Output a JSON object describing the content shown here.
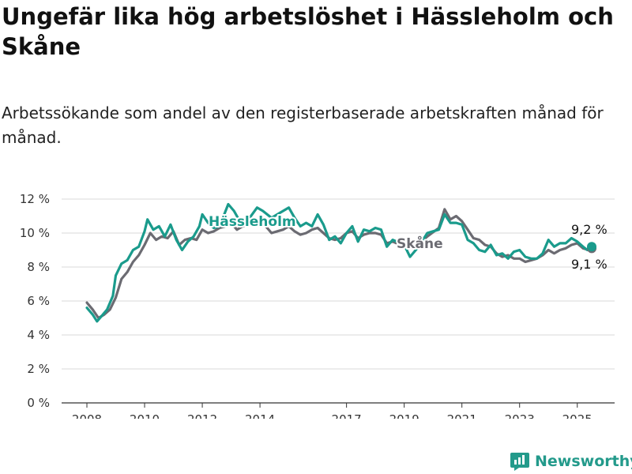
{
  "title": "Ungefär lika hög arbetslöshet i Hässleholm och Skåne",
  "subtitle": "Arbetssökande som andel av den registerbaserade arbetskraften månad för månad.",
  "brand": {
    "name": "Newsworthy",
    "logo_icon": "bar-chart-logo-icon"
  },
  "colors": {
    "hassleholm": "#1a9b8c",
    "skane": "#6b6b72",
    "grid": "#d9d9d9",
    "axis": "#333333"
  },
  "chart_data": {
    "type": "line",
    "y_ticks": [
      "0 %",
      "2 %",
      "4 %",
      "6 %",
      "8 %",
      "10 %",
      "12 %"
    ],
    "y_tick_values": [
      0,
      2,
      4,
      6,
      8,
      10,
      12
    ],
    "x_ticks": [
      "2008",
      "2010",
      "2012",
      "2014",
      "2017",
      "2019",
      "2021",
      "2023",
      "2025"
    ],
    "x_tick_values": [
      2008,
      2010,
      2012,
      2014,
      2017,
      2019,
      2021,
      2023,
      2025
    ],
    "xlim": [
      2008,
      2025.5
    ],
    "ylim": [
      0,
      12
    ],
    "grid": "horizontal",
    "series": [
      {
        "name": "Skåne",
        "label": "Skåne",
        "end_label": "9,1 %",
        "points": [
          [
            2008.0,
            5.9
          ],
          [
            2008.2,
            5.5
          ],
          [
            2008.4,
            5.0
          ],
          [
            2008.6,
            5.2
          ],
          [
            2008.8,
            5.5
          ],
          [
            2009.0,
            6.2
          ],
          [
            2009.2,
            7.3
          ],
          [
            2009.4,
            7.7
          ],
          [
            2009.6,
            8.3
          ],
          [
            2009.8,
            8.7
          ],
          [
            2010.0,
            9.3
          ],
          [
            2010.2,
            10.0
          ],
          [
            2010.4,
            9.6
          ],
          [
            2010.6,
            9.8
          ],
          [
            2010.8,
            9.7
          ],
          [
            2011.0,
            10.1
          ],
          [
            2011.2,
            9.3
          ],
          [
            2011.4,
            9.6
          ],
          [
            2011.6,
            9.7
          ],
          [
            2011.8,
            9.6
          ],
          [
            2012.0,
            10.2
          ],
          [
            2012.2,
            10.0
          ],
          [
            2012.4,
            10.1
          ],
          [
            2012.6,
            10.3
          ],
          [
            2012.8,
            10.4
          ],
          [
            2013.0,
            10.6
          ],
          [
            2013.2,
            10.2
          ],
          [
            2013.4,
            10.4
          ],
          [
            2013.6,
            10.5
          ],
          [
            2013.8,
            10.6
          ],
          [
            2014.0,
            10.8
          ],
          [
            2014.2,
            10.4
          ],
          [
            2014.4,
            10.0
          ],
          [
            2014.6,
            10.1
          ],
          [
            2014.8,
            10.2
          ],
          [
            2015.0,
            10.4
          ],
          [
            2015.2,
            10.1
          ],
          [
            2015.4,
            9.9
          ],
          [
            2015.6,
            10.0
          ],
          [
            2015.8,
            10.2
          ],
          [
            2016.0,
            10.3
          ],
          [
            2016.2,
            10.0
          ],
          [
            2016.4,
            9.7
          ],
          [
            2016.6,
            9.6
          ],
          [
            2016.8,
            9.7
          ],
          [
            2017.0,
            10.0
          ],
          [
            2017.2,
            10.1
          ],
          [
            2017.4,
            9.7
          ],
          [
            2017.6,
            9.9
          ],
          [
            2017.8,
            10.0
          ],
          [
            2018.0,
            10.0
          ],
          [
            2018.2,
            9.9
          ],
          [
            2018.4,
            9.4
          ],
          [
            2018.6,
            9.5
          ],
          [
            2019.0,
            9.2
          ],
          [
            2019.4,
            9.2
          ],
          [
            2019.8,
            9.8
          ],
          [
            2020.2,
            10.3
          ],
          [
            2020.4,
            11.4
          ],
          [
            2020.6,
            10.8
          ],
          [
            2020.8,
            11.0
          ],
          [
            2021.0,
            10.7
          ],
          [
            2021.2,
            10.2
          ],
          [
            2021.4,
            9.7
          ],
          [
            2021.6,
            9.6
          ],
          [
            2021.8,
            9.3
          ],
          [
            2022.0,
            9.2
          ],
          [
            2022.2,
            8.8
          ],
          [
            2022.4,
            8.6
          ],
          [
            2022.6,
            8.7
          ],
          [
            2022.8,
            8.5
          ],
          [
            2023.0,
            8.5
          ],
          [
            2023.2,
            8.3
          ],
          [
            2023.4,
            8.4
          ],
          [
            2023.6,
            8.5
          ],
          [
            2023.8,
            8.7
          ],
          [
            2024.0,
            9.0
          ],
          [
            2024.2,
            8.8
          ],
          [
            2024.4,
            9.0
          ],
          [
            2024.6,
            9.1
          ],
          [
            2024.8,
            9.3
          ],
          [
            2025.0,
            9.4
          ],
          [
            2025.2,
            9.1
          ],
          [
            2025.4,
            9.0
          ],
          [
            2025.5,
            9.1
          ]
        ]
      },
      {
        "name": "Hässleholm",
        "label": "Hässleholm",
        "end_label": "9,2 %",
        "points": [
          [
            2008.0,
            5.6
          ],
          [
            2008.2,
            5.2
          ],
          [
            2008.35,
            4.8
          ],
          [
            2008.5,
            5.1
          ],
          [
            2008.7,
            5.5
          ],
          [
            2008.9,
            6.3
          ],
          [
            2009.0,
            7.5
          ],
          [
            2009.2,
            8.2
          ],
          [
            2009.4,
            8.4
          ],
          [
            2009.6,
            9.0
          ],
          [
            2009.8,
            9.2
          ],
          [
            2010.0,
            10.1
          ],
          [
            2010.1,
            10.8
          ],
          [
            2010.3,
            10.2
          ],
          [
            2010.5,
            10.4
          ],
          [
            2010.7,
            9.8
          ],
          [
            2010.9,
            10.5
          ],
          [
            2011.1,
            9.6
          ],
          [
            2011.3,
            9.0
          ],
          [
            2011.5,
            9.5
          ],
          [
            2011.7,
            9.8
          ],
          [
            2011.9,
            10.4
          ],
          [
            2012.0,
            11.1
          ],
          [
            2012.2,
            10.6
          ],
          [
            2012.4,
            10.3
          ],
          [
            2012.6,
            10.4
          ],
          [
            2012.9,
            11.7
          ],
          [
            2013.1,
            11.3
          ],
          [
            2013.3,
            10.7
          ],
          [
            2013.6,
            10.8
          ],
          [
            2013.9,
            11.5
          ],
          [
            2014.1,
            11.3
          ],
          [
            2014.4,
            10.9
          ],
          [
            2014.7,
            11.2
          ],
          [
            2015.0,
            11.5
          ],
          [
            2015.2,
            10.9
          ],
          [
            2015.4,
            10.4
          ],
          [
            2015.6,
            10.6
          ],
          [
            2015.8,
            10.4
          ],
          [
            2016.0,
            11.1
          ],
          [
            2016.2,
            10.5
          ],
          [
            2016.4,
            9.6
          ],
          [
            2016.6,
            9.8
          ],
          [
            2016.8,
            9.4
          ],
          [
            2017.0,
            10.0
          ],
          [
            2017.2,
            10.4
          ],
          [
            2017.4,
            9.5
          ],
          [
            2017.6,
            10.2
          ],
          [
            2017.8,
            10.1
          ],
          [
            2018.0,
            10.3
          ],
          [
            2018.2,
            10.2
          ],
          [
            2018.4,
            9.2
          ],
          [
            2018.6,
            9.6
          ],
          [
            2019.0,
            9.3
          ],
          [
            2019.2,
            8.6
          ],
          [
            2019.5,
            9.2
          ],
          [
            2019.8,
            10.0
          ],
          [
            2020.0,
            10.1
          ],
          [
            2020.2,
            10.2
          ],
          [
            2020.4,
            11.1
          ],
          [
            2020.6,
            10.6
          ],
          [
            2020.8,
            10.6
          ],
          [
            2021.0,
            10.5
          ],
          [
            2021.2,
            9.6
          ],
          [
            2021.4,
            9.4
          ],
          [
            2021.6,
            9.0
          ],
          [
            2021.8,
            8.9
          ],
          [
            2022.0,
            9.3
          ],
          [
            2022.2,
            8.7
          ],
          [
            2022.4,
            8.8
          ],
          [
            2022.6,
            8.5
          ],
          [
            2022.8,
            8.9
          ],
          [
            2023.0,
            9.0
          ],
          [
            2023.2,
            8.6
          ],
          [
            2023.4,
            8.5
          ],
          [
            2023.6,
            8.5
          ],
          [
            2023.8,
            8.8
          ],
          [
            2024.0,
            9.6
          ],
          [
            2024.2,
            9.2
          ],
          [
            2024.4,
            9.4
          ],
          [
            2024.6,
            9.4
          ],
          [
            2024.8,
            9.7
          ],
          [
            2025.0,
            9.5
          ],
          [
            2025.2,
            9.2
          ],
          [
            2025.35,
            9.0
          ],
          [
            2025.5,
            9.2
          ]
        ]
      }
    ]
  }
}
